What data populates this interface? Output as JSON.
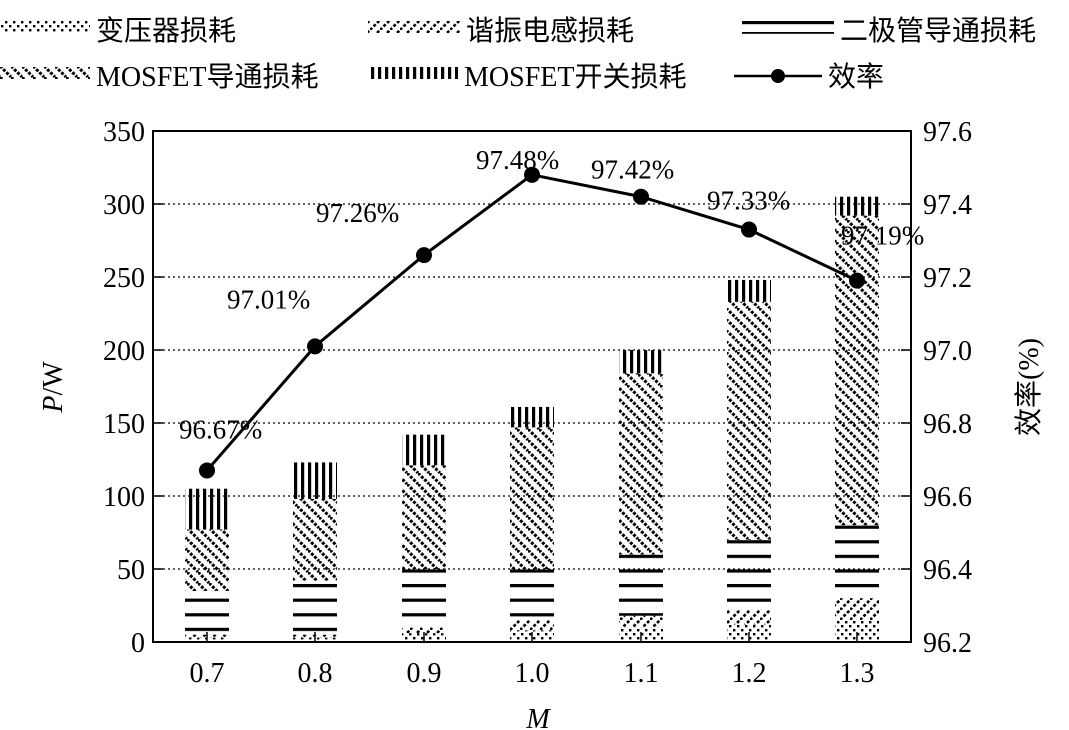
{
  "chart_data": {
    "type": "bar",
    "subtype": "stacked-bar-with-line-dual-axis",
    "title": "",
    "xlabel": "M",
    "ylabel": "P/W",
    "y2label": "效率(%)",
    "categories": [
      "0.7",
      "0.8",
      "0.9",
      "1.0",
      "1.1",
      "1.2",
      "1.3"
    ],
    "ylim": [
      0,
      350
    ],
    "yticks": [
      0,
      50,
      100,
      150,
      200,
      250,
      300,
      350
    ],
    "y2lim": [
      96.2,
      97.6
    ],
    "y2ticks": [
      "96.2",
      "96.4",
      "96.6",
      "96.8",
      "97.0",
      "97.2",
      "97.4",
      "97.6"
    ],
    "grid": "horizontal dotted",
    "legend_position": "top",
    "series": [
      {
        "name": "变压器损耗",
        "pattern": "dots",
        "values": [
          3,
          3,
          6,
          8,
          10,
          12,
          15
        ]
      },
      {
        "name": "谐振电感损耗",
        "pattern": "forward-diagonal",
        "values": [
          2,
          2,
          4,
          7,
          8,
          10,
          15
        ]
      },
      {
        "name": "二极管导通损耗",
        "pattern": "horizontal-lines",
        "values": [
          30,
          37,
          40,
          35,
          42,
          48,
          50
        ]
      },
      {
        "name": "MOSFET导通损耗",
        "pattern": "back-diagonal",
        "values": [
          42,
          56,
          71,
          97,
          124,
          163,
          212
        ]
      },
      {
        "name": "MOSFET开关损耗",
        "pattern": "vertical-lines",
        "values": [
          28,
          25,
          21,
          14,
          16,
          15,
          13
        ]
      },
      {
        "name": "效率",
        "type": "line",
        "axis": "right",
        "values": [
          96.67,
          97.01,
          97.26,
          97.48,
          97.42,
          97.33,
          97.19
        ]
      }
    ],
    "totals": [
      105,
      123,
      142,
      161,
      200,
      248,
      305
    ],
    "annotations": [
      "96.67%",
      "97.01%",
      "97.26%",
      "97.48%",
      "97.42%",
      "97.33%",
      "97.19%"
    ]
  },
  "legend": [
    {
      "label": "变压器损耗",
      "pattern": "dots"
    },
    {
      "label": "谐振电感损耗",
      "pattern": "forward-diagonal"
    },
    {
      "label": "二极管导通损耗",
      "pattern": "horizontal-lines"
    },
    {
      "label": "MOSFET导通损耗",
      "pattern": "back-diagonal"
    },
    {
      "label": "MOSFET开关损耗",
      "pattern": "vertical-lines"
    },
    {
      "label": "效率",
      "pattern": "line-marker"
    }
  ],
  "axes": {
    "x_label": "M",
    "y_label_italic": "P",
    "y_label_rest": "/W",
    "y2_label": "效率(%)"
  },
  "colors": {
    "ink": "#000000",
    "background": "#ffffff",
    "grid": "#000000"
  }
}
